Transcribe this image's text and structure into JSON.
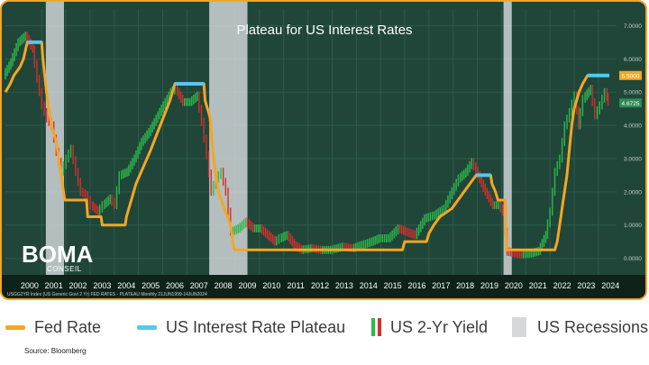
{
  "chart_data": {
    "type": "line",
    "title": "Plateau for US Interest Rates",
    "footer_text": "USGG2YR Index (US Generic Govt 2 Yr) FED RATES - PLATEAU  Monthly 21JUN1999-14JUN2024",
    "x_categories": [
      "2000",
      "2001",
      "2002",
      "2003",
      "2004",
      "2005",
      "2006",
      "2007",
      "2008",
      "2009",
      "2010",
      "2011",
      "2012",
      "2013",
      "2014",
      "2015",
      "2016",
      "2017",
      "2018",
      "2019",
      "2020",
      "2021",
      "2022",
      "2023",
      "2024"
    ],
    "xlim": [
      1999.5,
      2024.75
    ],
    "ylim": [
      -0.5,
      7.5
    ],
    "y_ticks": [
      "0.0000",
      "1.0000",
      "2.0000",
      "3.0000",
      "4.0000",
      "5.0000",
      "6.0000",
      "7.0000"
    ],
    "y_tick_values": [
      0,
      1,
      2,
      3,
      4,
      5,
      6,
      7
    ],
    "last_value_labels": [
      {
        "text": "5.5000",
        "value": 5.5,
        "color": "#f5a623"
      },
      {
        "text": "4.6725",
        "value": 4.6725,
        "color": "#2e8b57"
      }
    ],
    "recessions": [
      [
        2001.17,
        2001.92
      ],
      [
        2007.92,
        2009.5
      ],
      [
        2020.08,
        2020.42
      ]
    ],
    "series": [
      {
        "name": "Fed Rate",
        "color": "#f5a623",
        "points": [
          [
            1999.5,
            5.0
          ],
          [
            1999.7,
            5.25
          ],
          [
            1999.85,
            5.5
          ],
          [
            2000.1,
            5.75
          ],
          [
            2000.25,
            6.0
          ],
          [
            2000.4,
            6.5
          ],
          [
            2001.0,
            6.5
          ],
          [
            2001.05,
            6.0
          ],
          [
            2001.2,
            5.0
          ],
          [
            2001.4,
            4.0
          ],
          [
            2001.6,
            3.5
          ],
          [
            2001.8,
            2.5
          ],
          [
            2001.95,
            1.75
          ],
          [
            2002.85,
            1.75
          ],
          [
            2002.9,
            1.25
          ],
          [
            2003.45,
            1.25
          ],
          [
            2003.5,
            1.0
          ],
          [
            2004.45,
            1.0
          ],
          [
            2004.5,
            1.25
          ],
          [
            2004.9,
            2.25
          ],
          [
            2005.5,
            3.25
          ],
          [
            2005.9,
            4.0
          ],
          [
            2006.3,
            4.75
          ],
          [
            2006.5,
            5.25
          ],
          [
            2007.7,
            5.25
          ],
          [
            2007.75,
            4.75
          ],
          [
            2007.95,
            4.25
          ],
          [
            2008.1,
            3.0
          ],
          [
            2008.3,
            2.0
          ],
          [
            2008.8,
            1.0
          ],
          [
            2008.95,
            0.25
          ],
          [
            2015.9,
            0.25
          ],
          [
            2016.0,
            0.5
          ],
          [
            2016.9,
            0.5
          ],
          [
            2017.0,
            0.75
          ],
          [
            2017.2,
            1.0
          ],
          [
            2017.45,
            1.25
          ],
          [
            2017.95,
            1.5
          ],
          [
            2018.2,
            1.75
          ],
          [
            2018.45,
            2.0
          ],
          [
            2018.7,
            2.25
          ],
          [
            2018.95,
            2.5
          ],
          [
            2019.55,
            2.5
          ],
          [
            2019.6,
            2.25
          ],
          [
            2019.75,
            2.0
          ],
          [
            2019.85,
            1.75
          ],
          [
            2020.15,
            1.75
          ],
          [
            2020.2,
            0.25
          ],
          [
            2022.2,
            0.25
          ],
          [
            2022.3,
            0.5
          ],
          [
            2022.4,
            1.0
          ],
          [
            2022.55,
            1.75
          ],
          [
            2022.7,
            2.5
          ],
          [
            2022.8,
            3.25
          ],
          [
            2022.9,
            4.0
          ],
          [
            2023.0,
            4.5
          ],
          [
            2023.1,
            4.75
          ],
          [
            2023.2,
            5.0
          ],
          [
            2023.35,
            5.25
          ],
          [
            2023.55,
            5.5
          ],
          [
            2024.45,
            5.5
          ]
        ]
      },
      {
        "name": "US Interest Rate Plateau",
        "color": "#55c8ee",
        "segments": [
          [
            2000.4,
            2001.0,
            6.5
          ],
          [
            2006.5,
            2007.7,
            5.25
          ],
          [
            2018.95,
            2019.55,
            2.5
          ],
          [
            2023.55,
            2024.45,
            5.5
          ]
        ]
      },
      {
        "name": "US 2-Yr Yield",
        "up_color": "#2eb84b",
        "down_color": "#d62e2e",
        "points": [
          [
            1999.5,
            5.5
          ],
          [
            1999.8,
            5.9
          ],
          [
            2000.1,
            6.5
          ],
          [
            2000.4,
            6.7
          ],
          [
            2000.7,
            6.3
          ],
          [
            2000.9,
            5.4
          ],
          [
            2001.1,
            4.6
          ],
          [
            2001.3,
            4.2
          ],
          [
            2001.5,
            4.0
          ],
          [
            2001.7,
            3.2
          ],
          [
            2001.9,
            2.6
          ],
          [
            2002.1,
            3.0
          ],
          [
            2002.3,
            3.3
          ],
          [
            2002.5,
            2.6
          ],
          [
            2002.7,
            2.0
          ],
          [
            2002.9,
            1.9
          ],
          [
            2003.1,
            1.6
          ],
          [
            2003.4,
            1.4
          ],
          [
            2003.6,
            1.6
          ],
          [
            2003.9,
            1.8
          ],
          [
            2004.1,
            1.6
          ],
          [
            2004.3,
            2.5
          ],
          [
            2004.6,
            2.6
          ],
          [
            2004.9,
            3.0
          ],
          [
            2005.2,
            3.5
          ],
          [
            2005.5,
            3.8
          ],
          [
            2005.8,
            4.2
          ],
          [
            2006.1,
            4.6
          ],
          [
            2006.4,
            5.0
          ],
          [
            2006.6,
            5.1
          ],
          [
            2006.9,
            4.7
          ],
          [
            2007.2,
            4.7
          ],
          [
            2007.5,
            4.9
          ],
          [
            2007.7,
            4.1
          ],
          [
            2007.9,
            3.1
          ],
          [
            2008.1,
            2.0
          ],
          [
            2008.3,
            2.4
          ],
          [
            2008.5,
            2.6
          ],
          [
            2008.7,
            2.0
          ],
          [
            2008.9,
            0.8
          ],
          [
            2009.2,
            0.9
          ],
          [
            2009.5,
            1.1
          ],
          [
            2009.8,
            0.9
          ],
          [
            2010.1,
            0.9
          ],
          [
            2010.4,
            0.7
          ],
          [
            2010.7,
            0.5
          ],
          [
            2010.9,
            0.6
          ],
          [
            2011.2,
            0.7
          ],
          [
            2011.5,
            0.4
          ],
          [
            2011.8,
            0.25
          ],
          [
            2012.2,
            0.3
          ],
          [
            2012.6,
            0.25
          ],
          [
            2013.0,
            0.25
          ],
          [
            2013.5,
            0.35
          ],
          [
            2013.9,
            0.3
          ],
          [
            2014.3,
            0.4
          ],
          [
            2014.7,
            0.5
          ],
          [
            2015.0,
            0.6
          ],
          [
            2015.4,
            0.6
          ],
          [
            2015.8,
            0.9
          ],
          [
            2016.1,
            0.8
          ],
          [
            2016.5,
            0.7
          ],
          [
            2016.9,
            1.2
          ],
          [
            2017.3,
            1.3
          ],
          [
            2017.7,
            1.5
          ],
          [
            2017.95,
            1.9
          ],
          [
            2018.3,
            2.4
          ],
          [
            2018.6,
            2.6
          ],
          [
            2018.85,
            2.9
          ],
          [
            2019.1,
            2.5
          ],
          [
            2019.4,
            2.0
          ],
          [
            2019.7,
            1.6
          ],
          [
            2019.95,
            1.6
          ],
          [
            2020.15,
            1.4
          ],
          [
            2020.3,
            0.2
          ],
          [
            2020.6,
            0.15
          ],
          [
            2020.9,
            0.12
          ],
          [
            2021.3,
            0.15
          ],
          [
            2021.6,
            0.22
          ],
          [
            2021.9,
            0.7
          ],
          [
            2022.1,
            1.4
          ],
          [
            2022.3,
            2.6
          ],
          [
            2022.5,
            3.0
          ],
          [
            2022.7,
            4.0
          ],
          [
            2022.9,
            4.4
          ],
          [
            2023.1,
            4.9
          ],
          [
            2023.25,
            4.0
          ],
          [
            2023.45,
            4.8
          ],
          [
            2023.75,
            5.1
          ],
          [
            2023.95,
            4.3
          ],
          [
            2024.15,
            4.6
          ],
          [
            2024.35,
            5.0
          ],
          [
            2024.45,
            4.7
          ]
        ]
      },
      {
        "name": "US Recessions",
        "color": "#d6d9dc"
      }
    ],
    "grid": true
  },
  "legend": {
    "fed_rate": "Fed Rate",
    "plateau": "US Interest Rate Plateau",
    "yield": "US 2-Yr Yield",
    "recessions": "US Recessions"
  },
  "logo": {
    "name": "BOMA",
    "sub": "CONSEIL"
  },
  "source": "Source: Bloomberg",
  "colors": {
    "frame": "#f5a623",
    "background": "#1f4639",
    "grid": "#2f5a4b",
    "xaxis_band": "#0e2219"
  }
}
